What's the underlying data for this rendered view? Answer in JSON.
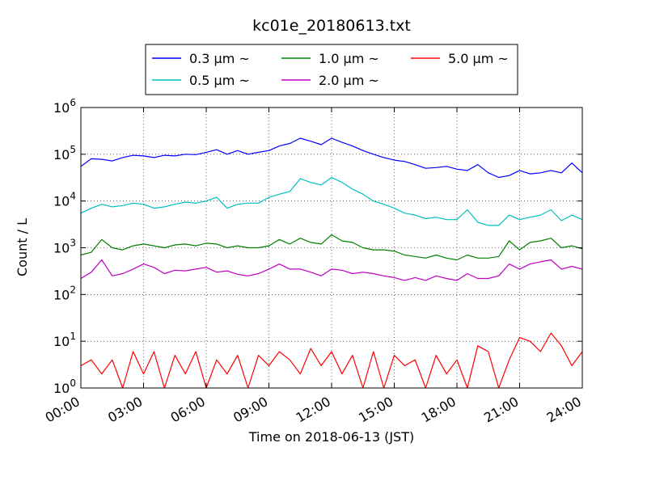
{
  "chart_data": {
    "type": "line",
    "title": "kc01e_20180613.txt",
    "xlabel": "Time on 2018-06-13 (JST)",
    "ylabel": "Count / L",
    "y_scale": "log",
    "ylim": [
      1,
      1000000
    ],
    "y_ticks": [
      {
        "base": "10",
        "exp": "0",
        "value": 1
      },
      {
        "base": "10",
        "exp": "1",
        "value": 10
      },
      {
        "base": "10",
        "exp": "2",
        "value": 100
      },
      {
        "base": "10",
        "exp": "3",
        "value": 1000
      },
      {
        "base": "10",
        "exp": "4",
        "value": 10000
      },
      {
        "base": "10",
        "exp": "5",
        "value": 100000
      },
      {
        "base": "10",
        "exp": "6",
        "value": 1000000
      }
    ],
    "x_ticks": [
      "00:00",
      "03:00",
      "06:00",
      "09:00",
      "12:00",
      "15:00",
      "18:00",
      "21:00",
      "24:00"
    ],
    "xlim": [
      "00:00",
      "24:00"
    ],
    "grid": true,
    "legend_position": "top-center",
    "series": [
      {
        "name": "0.3 μm ~",
        "color": "#0000ff",
        "x": [
          "00:00",
          "00:30",
          "01:00",
          "01:30",
          "02:00",
          "02:30",
          "03:00",
          "03:30",
          "04:00",
          "04:30",
          "05:00",
          "05:30",
          "06:00",
          "06:30",
          "07:00",
          "07:30",
          "08:00",
          "08:30",
          "09:00",
          "09:30",
          "10:00",
          "10:30",
          "11:00",
          "11:30",
          "12:00",
          "12:30",
          "13:00",
          "13:30",
          "14:00",
          "14:30",
          "15:00",
          "15:30",
          "16:00",
          "16:30",
          "17:00",
          "17:30",
          "18:00",
          "18:30",
          "19:00",
          "19:30",
          "20:00",
          "20:30",
          "21:00",
          "21:30",
          "22:00",
          "22:30",
          "23:00",
          "23:30",
          "24:00"
        ],
        "y": [
          55000,
          80000,
          78000,
          72000,
          85000,
          95000,
          92000,
          85000,
          95000,
          92000,
          100000,
          98000,
          110000,
          125000,
          100000,
          120000,
          100000,
          110000,
          120000,
          150000,
          170000,
          220000,
          190000,
          160000,
          220000,
          180000,
          150000,
          120000,
          100000,
          85000,
          75000,
          70000,
          60000,
          50000,
          52000,
          55000,
          48000,
          45000,
          60000,
          40000,
          32000,
          35000,
          45000,
          38000,
          40000,
          45000,
          40000,
          65000,
          40000
        ]
      },
      {
        "name": "0.5 μm ~",
        "color": "#00bfbf",
        "x": [
          "00:00",
          "00:30",
          "01:00",
          "01:30",
          "02:00",
          "02:30",
          "03:00",
          "03:30",
          "04:00",
          "04:30",
          "05:00",
          "05:30",
          "06:00",
          "06:30",
          "07:00",
          "07:30",
          "08:00",
          "08:30",
          "09:00",
          "09:30",
          "10:00",
          "10:30",
          "11:00",
          "11:30",
          "12:00",
          "12:30",
          "13:00",
          "13:30",
          "14:00",
          "14:30",
          "15:00",
          "15:30",
          "16:00",
          "16:30",
          "17:00",
          "17:30",
          "18:00",
          "18:30",
          "19:00",
          "19:30",
          "20:00",
          "20:30",
          "21:00",
          "21:30",
          "22:00",
          "22:30",
          "23:00",
          "23:30",
          "24:00"
        ],
        "y": [
          5500,
          7000,
          8500,
          7500,
          8000,
          9000,
          8500,
          7000,
          7500,
          8500,
          9500,
          9000,
          10000,
          12000,
          7000,
          8500,
          9000,
          9000,
          12000,
          14000,
          16000,
          30000,
          25000,
          22000,
          32000,
          25000,
          18000,
          14000,
          10000,
          8500,
          7000,
          5500,
          5000,
          4200,
          4500,
          4000,
          4000,
          6500,
          3500,
          3000,
          3000,
          5000,
          4000,
          4500,
          5000,
          6500,
          3800,
          5000,
          4000
        ]
      },
      {
        "name": "1.0 μm ~",
        "color": "#008000",
        "x": [
          "00:00",
          "00:30",
          "01:00",
          "01:30",
          "02:00",
          "02:30",
          "03:00",
          "03:30",
          "04:00",
          "04:30",
          "05:00",
          "05:30",
          "06:00",
          "06:30",
          "07:00",
          "07:30",
          "08:00",
          "08:30",
          "09:00",
          "09:30",
          "10:00",
          "10:30",
          "11:00",
          "11:30",
          "12:00",
          "12:30",
          "13:00",
          "13:30",
          "14:00",
          "14:30",
          "15:00",
          "15:30",
          "16:00",
          "16:30",
          "17:00",
          "17:30",
          "18:00",
          "18:30",
          "19:00",
          "19:30",
          "20:00",
          "20:30",
          "21:00",
          "21:30",
          "22:00",
          "22:30",
          "23:00",
          "23:30",
          "24:00"
        ],
        "y": [
          700,
          800,
          1500,
          1000,
          900,
          1100,
          1200,
          1100,
          1000,
          1150,
          1200,
          1100,
          1250,
          1200,
          1000,
          1100,
          1000,
          1000,
          1100,
          1500,
          1200,
          1600,
          1300,
          1200,
          1900,
          1400,
          1300,
          1000,
          900,
          900,
          850,
          700,
          650,
          600,
          700,
          600,
          550,
          700,
          600,
          600,
          650,
          1400,
          900,
          1300,
          1400,
          1600,
          1000,
          1100,
          950
        ]
      },
      {
        "name": "2.0 μm ~",
        "color": "#bf00bf",
        "x": [
          "00:00",
          "00:30",
          "01:00",
          "01:30",
          "02:00",
          "02:30",
          "03:00",
          "03:30",
          "04:00",
          "04:30",
          "05:00",
          "05:30",
          "06:00",
          "06:30",
          "07:00",
          "07:30",
          "08:00",
          "08:30",
          "09:00",
          "09:30",
          "10:00",
          "10:30",
          "11:00",
          "11:30",
          "12:00",
          "12:30",
          "13:00",
          "13:30",
          "14:00",
          "14:30",
          "15:00",
          "15:30",
          "16:00",
          "16:30",
          "17:00",
          "17:30",
          "18:00",
          "18:30",
          "19:00",
          "19:30",
          "20:00",
          "20:30",
          "21:00",
          "21:30",
          "22:00",
          "22:30",
          "23:00",
          "23:30",
          "24:00"
        ],
        "y": [
          220,
          300,
          550,
          250,
          280,
          350,
          450,
          380,
          280,
          330,
          320,
          350,
          380,
          300,
          320,
          270,
          250,
          280,
          350,
          450,
          350,
          350,
          300,
          250,
          350,
          330,
          280,
          300,
          280,
          250,
          230,
          200,
          230,
          200,
          250,
          220,
          200,
          280,
          220,
          220,
          250,
          450,
          350,
          450,
          500,
          550,
          350,
          400,
          350
        ]
      },
      {
        "name": "5.0 μm ~",
        "color": "#ff0000",
        "x": [
          "00:00",
          "00:30",
          "01:00",
          "01:30",
          "02:00",
          "02:30",
          "03:00",
          "03:30",
          "04:00",
          "04:30",
          "05:00",
          "05:30",
          "06:00",
          "06:30",
          "07:00",
          "07:30",
          "08:00",
          "08:30",
          "09:00",
          "09:30",
          "10:00",
          "10:30",
          "11:00",
          "11:30",
          "12:00",
          "12:30",
          "13:00",
          "13:30",
          "14:00",
          "14:30",
          "15:00",
          "15:30",
          "16:00",
          "16:30",
          "17:00",
          "17:30",
          "18:00",
          "18:30",
          "19:00",
          "19:30",
          "20:00",
          "20:30",
          "21:00",
          "21:30",
          "22:00",
          "22:30",
          "23:00",
          "23:30",
          "24:00"
        ],
        "y": [
          3,
          4,
          2,
          4,
          1,
          6,
          2,
          6,
          1,
          5,
          2,
          6,
          1,
          4,
          2,
          5,
          1,
          5,
          3,
          6,
          4,
          2,
          7,
          3,
          6,
          2,
          5,
          1,
          6,
          1,
          5,
          3,
          4,
          1,
          5,
          2,
          4,
          1,
          8,
          6,
          1,
          4,
          12,
          10,
          6,
          15,
          8,
          3,
          6
        ]
      }
    ]
  }
}
